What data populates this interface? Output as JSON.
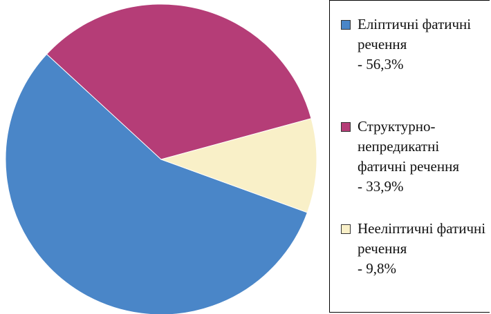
{
  "chart_data": {
    "type": "pie",
    "categories": [
      "Еліптичні фатичні речення",
      "Структурно-непредикатні фатичні речення",
      "Неелiптичні фатичні речення"
    ],
    "values": [
      56.3,
      33.9,
      9.8
    ],
    "value_labels": [
      "- 56,3%",
      "- 33,9%",
      "- 9,8%"
    ],
    "colors": [
      "#4a86c8",
      "#b53d77",
      "#f9f0c8"
    ],
    "legend": "right"
  }
}
